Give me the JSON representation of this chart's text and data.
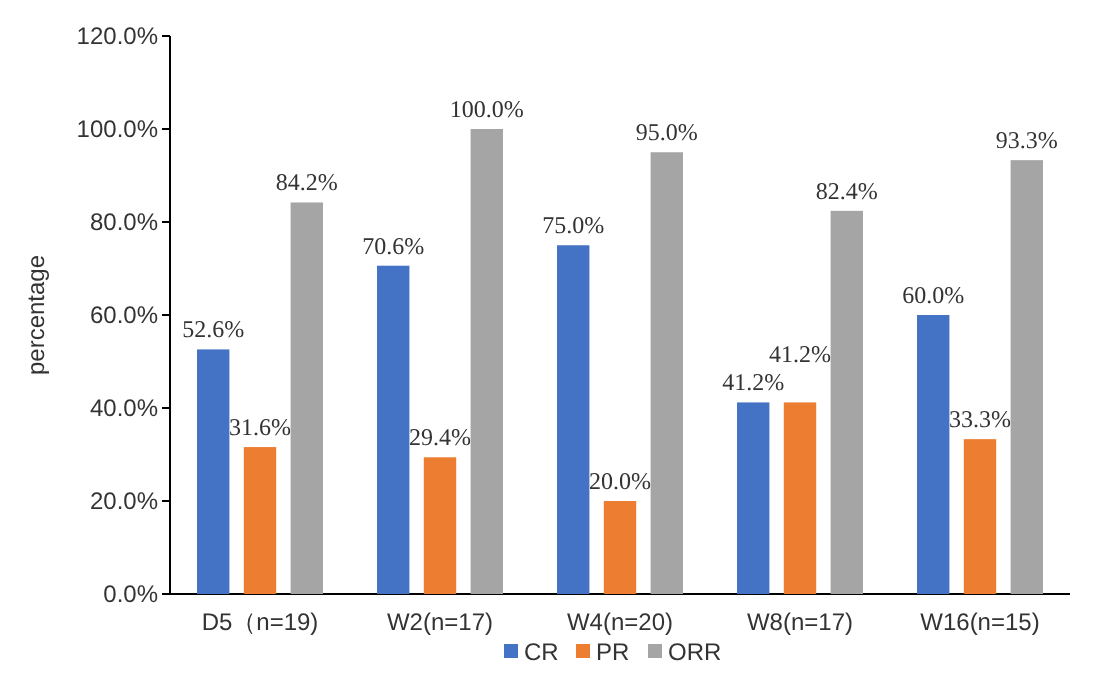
{
  "chart_data": {
    "type": "bar",
    "ylabel": "percentage",
    "categories": [
      "D5（n=19)",
      "W2(n=17)",
      "W4(n=20)",
      "W8(n=17)",
      "W16(n=15)"
    ],
    "series": [
      {
        "name": "CR",
        "color": "#4472c4",
        "values": [
          52.6,
          70.6,
          75.0,
          41.2,
          60.0
        ],
        "value_labels": [
          "52.6%",
          "70.6%",
          "75.0%",
          "41.2%",
          "60.0%"
        ]
      },
      {
        "name": "PR",
        "color": "#ed7d31",
        "values": [
          31.6,
          29.4,
          20.0,
          41.2,
          33.3
        ],
        "value_labels": [
          "31.6%",
          "29.4%",
          "20.0%",
          "41.2%",
          "33.3%"
        ]
      },
      {
        "name": "ORR",
        "color": "#a5a5a5",
        "values": [
          84.2,
          100.0,
          95.0,
          82.4,
          93.3
        ],
        "value_labels": [
          "84.2%",
          "100.0%",
          "95.0%",
          "82.4%",
          "93.3%"
        ]
      }
    ],
    "ylim": [
      0,
      120
    ],
    "yticks": [
      {
        "value": 0,
        "label": "0.0%"
      },
      {
        "value": 20,
        "label": "20.0%"
      },
      {
        "value": 40,
        "label": "40.0%"
      },
      {
        "value": 60,
        "label": "60.0%"
      },
      {
        "value": 80,
        "label": "80.0%"
      },
      {
        "value": 100,
        "label": "100.0%"
      },
      {
        "value": 120,
        "label": "120.0%"
      }
    ],
    "grid": false,
    "legend": "bottom"
  }
}
